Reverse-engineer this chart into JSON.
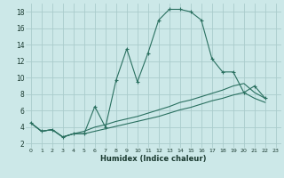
{
  "background_color": "#cce8e8",
  "grid_color": "#aacccc",
  "line_color": "#2a7060",
  "xlabel": "Humidex (Indice chaleur)",
  "xlim": [
    -0.5,
    23.5
  ],
  "ylim": [
    1.5,
    19.0
  ],
  "yticks": [
    2,
    4,
    6,
    8,
    10,
    12,
    14,
    16,
    18
  ],
  "xticks": [
    0,
    1,
    2,
    3,
    4,
    5,
    6,
    7,
    8,
    9,
    10,
    11,
    12,
    13,
    14,
    15,
    16,
    17,
    18,
    19,
    20,
    21,
    22,
    23
  ],
  "main_x": [
    0,
    1,
    2,
    3,
    4,
    5,
    6,
    7,
    8,
    9,
    10,
    11,
    12,
    13,
    14,
    15,
    16,
    17,
    18,
    19,
    20,
    21,
    22
  ],
  "main_y": [
    4.5,
    3.5,
    3.7,
    2.8,
    3.2,
    3.2,
    6.5,
    4.0,
    9.7,
    13.5,
    9.5,
    13.0,
    17.0,
    18.3,
    18.3,
    18.0,
    17.0,
    12.3,
    10.7,
    10.7,
    8.2,
    9.0,
    7.5
  ],
  "line1_x": [
    0,
    1,
    2,
    3,
    4,
    5,
    6,
    7,
    8,
    9,
    10,
    11,
    12,
    13,
    14,
    15,
    16,
    17,
    18,
    19,
    20,
    21,
    22
  ],
  "line1_y": [
    4.5,
    3.5,
    3.7,
    2.8,
    3.2,
    3.5,
    4.0,
    4.3,
    4.7,
    5.0,
    5.3,
    5.7,
    6.1,
    6.5,
    7.0,
    7.3,
    7.7,
    8.1,
    8.5,
    9.0,
    9.3,
    8.2,
    7.5
  ],
  "line2_x": [
    0,
    1,
    2,
    3,
    4,
    5,
    6,
    7,
    8,
    9,
    10,
    11,
    12,
    13,
    14,
    15,
    16,
    17,
    18,
    19,
    20,
    21,
    22
  ],
  "line2_y": [
    4.5,
    3.5,
    3.7,
    2.8,
    3.2,
    3.2,
    3.5,
    3.8,
    4.1,
    4.4,
    4.7,
    5.0,
    5.3,
    5.7,
    6.1,
    6.4,
    6.8,
    7.2,
    7.5,
    7.9,
    8.2,
    7.5,
    7.0
  ],
  "marker_x": [
    0,
    1,
    2,
    3,
    4,
    5,
    6,
    7,
    8,
    9,
    10,
    11,
    12,
    13,
    14,
    15,
    16,
    17,
    18,
    19,
    20,
    21,
    22
  ],
  "marker_y": [
    4.5,
    3.5,
    3.7,
    2.8,
    3.2,
    3.2,
    6.5,
    4.0,
    9.7,
    13.5,
    9.5,
    13.0,
    17.0,
    18.3,
    18.3,
    18.0,
    17.0,
    12.3,
    10.7,
    10.7,
    8.2,
    9.0,
    7.5
  ]
}
